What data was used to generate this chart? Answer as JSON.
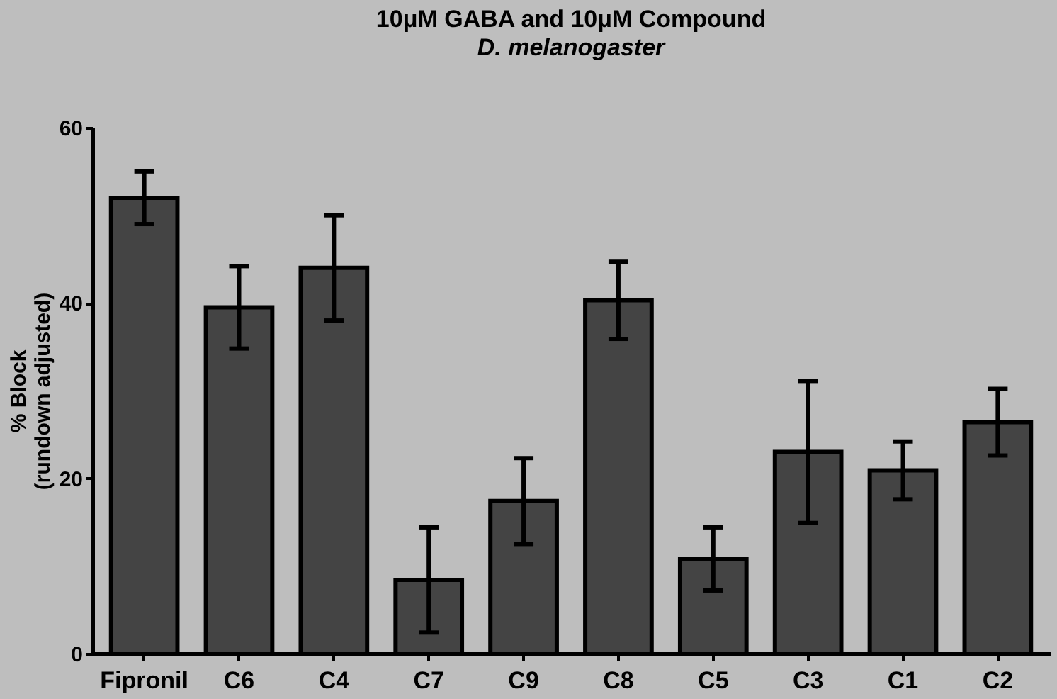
{
  "chart_data": {
    "type": "bar",
    "title": "10μM GABA and 10μM Compound",
    "subtitle": "D. melanogaster",
    "ylabel": "% Block\n(rundown adjusted)",
    "categories": [
      "Fipronil",
      "C6",
      "C4",
      "C7",
      "C9",
      "C8",
      "C5",
      "C3",
      "C1",
      "C2"
    ],
    "values": [
      52,
      39.5,
      44,
      8.4,
      17.4,
      40.3,
      10.8,
      23,
      20.9,
      26.4
    ],
    "errors": [
      3,
      4.7,
      6,
      6,
      4.9,
      4.4,
      3.6,
      8.1,
      3.3,
      3.8
    ],
    "color": "#444444",
    "ylim": [
      0,
      60
    ],
    "yticks": [
      0,
      20,
      40,
      60
    ],
    "grid": false
  }
}
